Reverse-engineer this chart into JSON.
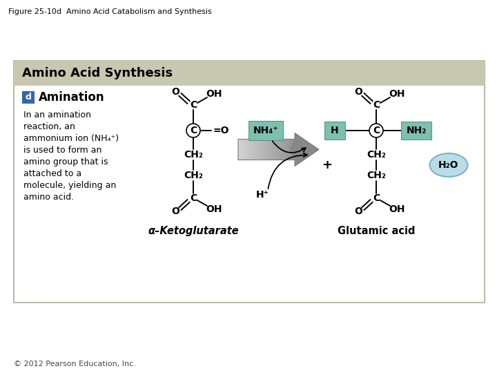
{
  "figure_title": "Figure 25-10d  Amino Acid Catabolism and Synthesis",
  "section_title": "Amino Acid Synthesis",
  "subsection_label": "d",
  "subsection_title": "Amination",
  "description_lines": [
    "In an amination",
    "reaction, an",
    "ammonium ion (NH₄⁺)",
    "is used to form an",
    "amino group that is",
    "attached to a",
    "molecule, yielding an",
    "amino acid."
  ],
  "left_molecule_label": "α–Ketoglutarate",
  "right_molecule_label": "Glutamic acid",
  "nh4_label": "NH₄⁺",
  "hplus_label": "H⁺",
  "h2o_label": "H₂O",
  "bg_color": "#ffffff",
  "box_bg": "#ffffff",
  "box_border": "#aaaaaa",
  "header_bg": "#c8c8b0",
  "nh4_box_color": "#7fbfb0",
  "nh2_box_color": "#7fbfb0",
  "h_box_color": "#7fbfb0",
  "h2o_fill": "#b8dde8",
  "h2o_stroke": "#7fb0cc",
  "d_box_color": "#3366aa",
  "text_color": "#000000",
  "copyright": "© 2012 Pearson Education, Inc.",
  "figsize": [
    7.2,
    5.4
  ],
  "dpi": 100
}
